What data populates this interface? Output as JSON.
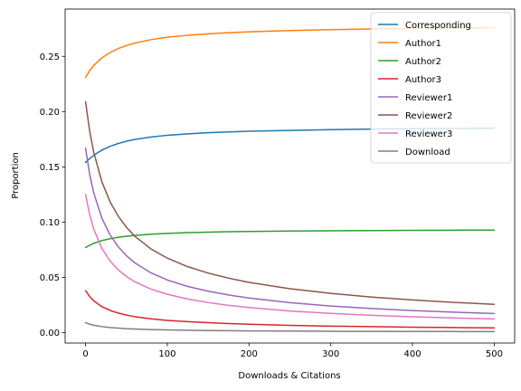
{
  "chart_data": {
    "type": "line",
    "title": "",
    "xlabel": "Downloads & Citations",
    "ylabel": "Proportion",
    "xlim": [
      -25,
      525
    ],
    "ylim": [
      -0.0094,
      0.2928
    ],
    "xticks": [
      0,
      100,
      200,
      300,
      400,
      500
    ],
    "yticks": [
      0.0,
      0.05,
      0.1,
      0.15,
      0.2,
      0.25
    ],
    "xtick_labels": [
      "0",
      "100",
      "200",
      "300",
      "400",
      "500"
    ],
    "ytick_labels": [
      "0.00",
      "0.05",
      "0.10",
      "0.15",
      "0.20",
      "0.25"
    ],
    "grid": false,
    "legend_position": "top-right",
    "x": [
      0,
      5,
      10,
      20,
      30,
      40,
      50,
      60,
      80,
      100,
      125,
      150,
      175,
      200,
      250,
      300,
      350,
      400,
      450,
      500
    ],
    "series": [
      {
        "name": "Corresponding",
        "color": "#1f77b4",
        "values": [
          0.154,
          0.1575,
          0.1605,
          0.1652,
          0.1686,
          0.1712,
          0.1732,
          0.1748,
          0.177,
          0.1786,
          0.1799,
          0.1809,
          0.1816,
          0.1822,
          0.183,
          0.1837,
          0.1842,
          0.1845,
          0.1848,
          0.185
        ]
      },
      {
        "name": "Author1",
        "color": "#ff7f0e",
        "values": [
          0.231,
          0.2371,
          0.2418,
          0.2487,
          0.2535,
          0.2571,
          0.2598,
          0.262,
          0.2651,
          0.2673,
          0.2691,
          0.2704,
          0.2714,
          0.2722,
          0.2733,
          0.2742,
          0.2748,
          0.2753,
          0.2757,
          0.276
        ]
      },
      {
        "name": "Author2",
        "color": "#2ca02c",
        "values": [
          0.077,
          0.0791,
          0.0808,
          0.0833,
          0.085,
          0.0863,
          0.0872,
          0.088,
          0.0891,
          0.0898,
          0.0905,
          0.0909,
          0.0913,
          0.0915,
          0.0919,
          0.0922,
          0.0924,
          0.0926,
          0.0927,
          0.0928
        ]
      },
      {
        "name": "Author3",
        "color": "#d62728",
        "values": [
          0.038,
          0.0327,
          0.0288,
          0.0235,
          0.0201,
          0.0177,
          0.0159,
          0.0145,
          0.0125,
          0.0111,
          0.0099,
          0.009,
          0.0082,
          0.0076,
          0.0066,
          0.0059,
          0.0054,
          0.0049,
          0.0046,
          0.0043
        ]
      },
      {
        "name": "Reviewer1",
        "color": "#9467bd",
        "values": [
          0.167,
          0.1434,
          0.1264,
          0.1035,
          0.0885,
          0.0777,
          0.0696,
          0.0633,
          0.0541,
          0.0477,
          0.0418,
          0.0375,
          0.0341,
          0.0313,
          0.0271,
          0.0241,
          0.0218,
          0.02,
          0.0185,
          0.0173
        ]
      },
      {
        "name": "Reviewer2",
        "color": "#8c564b",
        "values": [
          0.209,
          0.1826,
          0.1632,
          0.1364,
          0.1184,
          0.1054,
          0.0953,
          0.0874,
          0.0757,
          0.0674,
          0.0597,
          0.0539,
          0.0493,
          0.0455,
          0.0397,
          0.0355,
          0.0322,
          0.0296,
          0.0274,
          0.0256
        ]
      },
      {
        "name": "Reviewer3",
        "color": "#e377c2",
        "values": [
          0.125,
          0.1068,
          0.0936,
          0.0761,
          0.0648,
          0.0568,
          0.0508,
          0.0461,
          0.0394,
          0.0347,
          0.0304,
          0.0272,
          0.0247,
          0.0227,
          0.0196,
          0.0174,
          0.0157,
          0.0144,
          0.0133,
          0.0124
        ]
      },
      {
        "name": "Download",
        "color": "#7f7f7f",
        "values": [
          0.009,
          0.0077,
          0.0067,
          0.0055,
          0.0046,
          0.0041,
          0.0036,
          0.0033,
          0.0028,
          0.0025,
          0.0022,
          0.0019,
          0.0018,
          0.0016,
          0.0014,
          0.0012,
          0.0011,
          0.001,
          0.001,
          0.0009
        ]
      }
    ]
  }
}
